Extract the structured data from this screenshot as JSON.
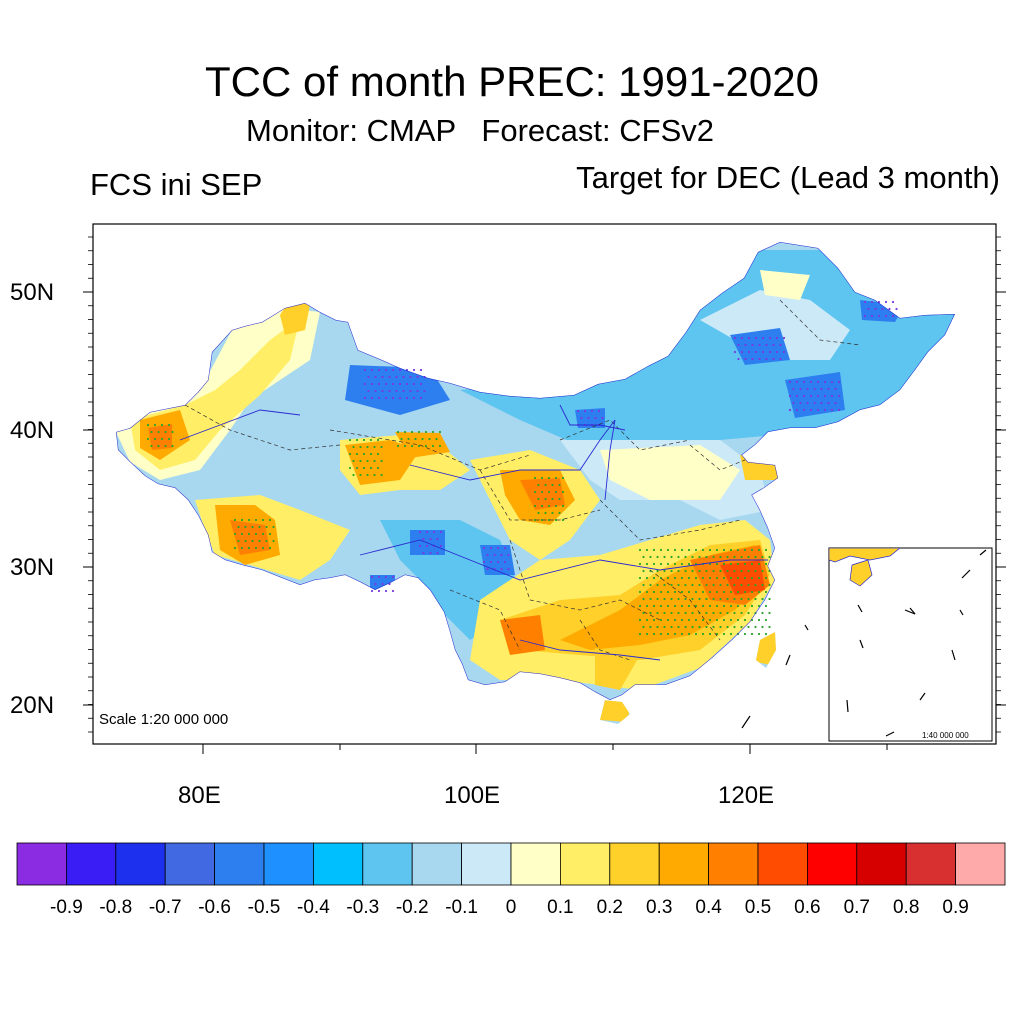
{
  "header": {
    "title": "TCC of month PREC: 1991-2020",
    "subtitle": "Monitor: CMAP   Forecast: CFSv2",
    "left_label": "FCS ini SEP",
    "right_label": "Target for DEC (Lead 3 month)"
  },
  "map": {
    "lat_labels": [
      "50N",
      "40N",
      "30N",
      "20N"
    ],
    "lon_labels": [
      "80E",
      "100E",
      "120E"
    ],
    "scale_main": "Scale 1:20 000 000",
    "scale_inset": "1:40 000 000"
  },
  "colorbar": {
    "colors": [
      "#8b2be2",
      "#3a1cf5",
      "#1c30ee",
      "#4169e1",
      "#2d7fef",
      "#1e90ff",
      "#00bfff",
      "#5ec4f0",
      "#a8d8f0",
      "#cce9f7",
      "#ffffc8",
      "#ffee66",
      "#ffd02a",
      "#ffaa00",
      "#ff8000",
      "#ff4c00",
      "#ff0000",
      "#d70000",
      "#d83030",
      "#ffaaaa"
    ],
    "labels": [
      "-0.9",
      "-0.8",
      "-0.7",
      "-0.6",
      "-0.5",
      "-0.4",
      "-0.3",
      "-0.2",
      "-0.1",
      "0",
      "0.1",
      "0.2",
      "0.3",
      "0.4",
      "0.5",
      "0.6",
      "0.7",
      "0.8",
      "0.9"
    ]
  }
}
